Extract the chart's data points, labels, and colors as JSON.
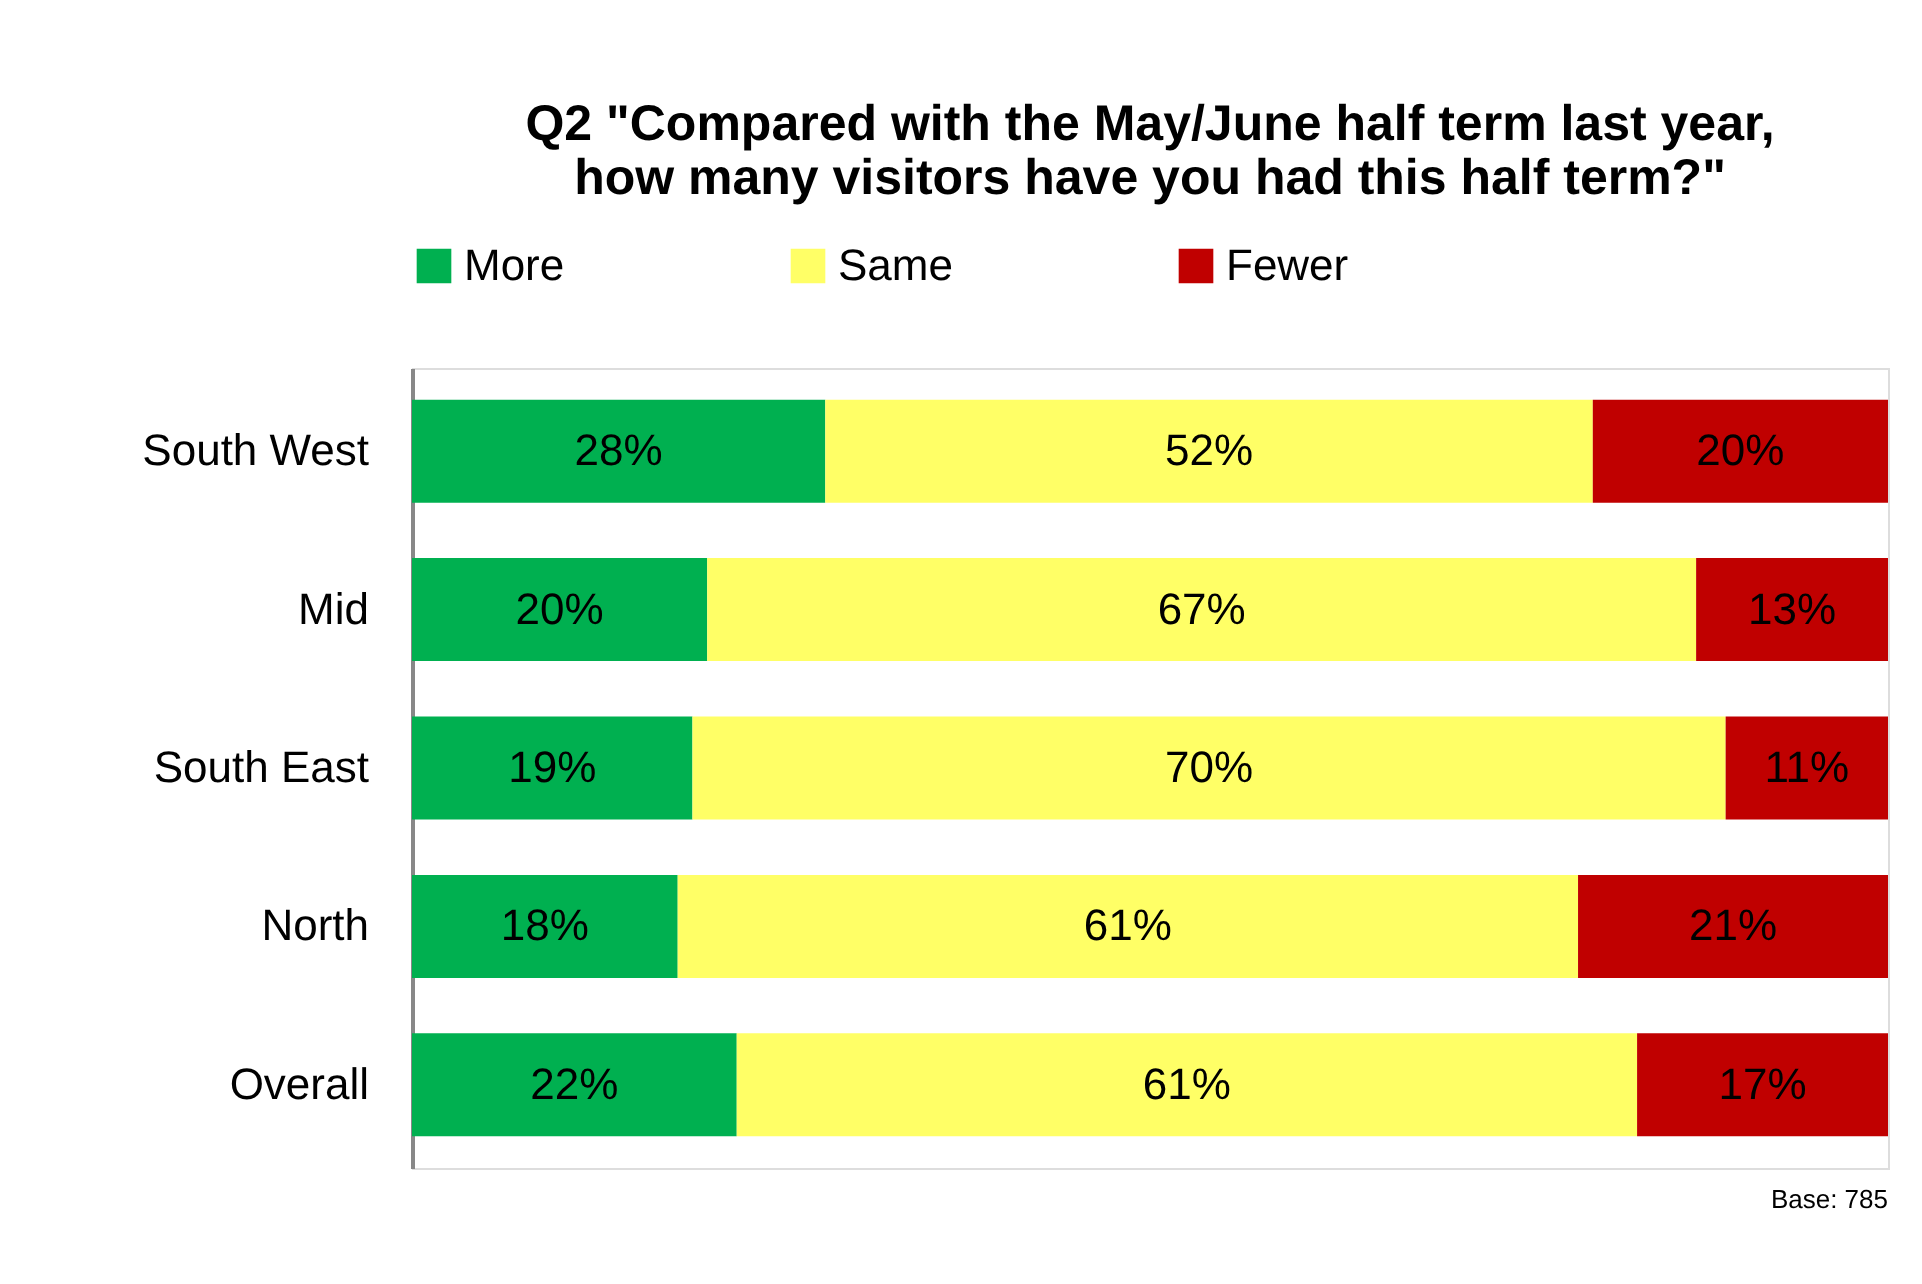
{
  "chart_data": {
    "type": "bar",
    "orientation": "horizontal",
    "stacked": true,
    "title": "Q2 \"Compared with the May/June half term last year,\nhow many visitors have you had this half term?\"",
    "categories": [
      "South West",
      "Mid",
      "South East",
      "North",
      "Overall"
    ],
    "series": [
      {
        "name": "More",
        "color": "#00b050",
        "values": [
          28,
          20,
          19,
          18,
          22
        ],
        "value_labels": [
          "28%",
          "20%",
          "19%",
          "18%",
          "22%"
        ]
      },
      {
        "name": "Same",
        "color": "#ffff66",
        "values": [
          52,
          67,
          70,
          61,
          61
        ],
        "value_labels": [
          "52%",
          "67%",
          "70%",
          "61%",
          "61%"
        ]
      },
      {
        "name": "Fewer",
        "color": "#c00000",
        "values": [
          20,
          13,
          11,
          21,
          17
        ],
        "value_labels": [
          "20%",
          "13%",
          "11%",
          "21%",
          "17%"
        ]
      }
    ],
    "legend": "top",
    "annotations": [
      "Base: 785"
    ]
  }
}
